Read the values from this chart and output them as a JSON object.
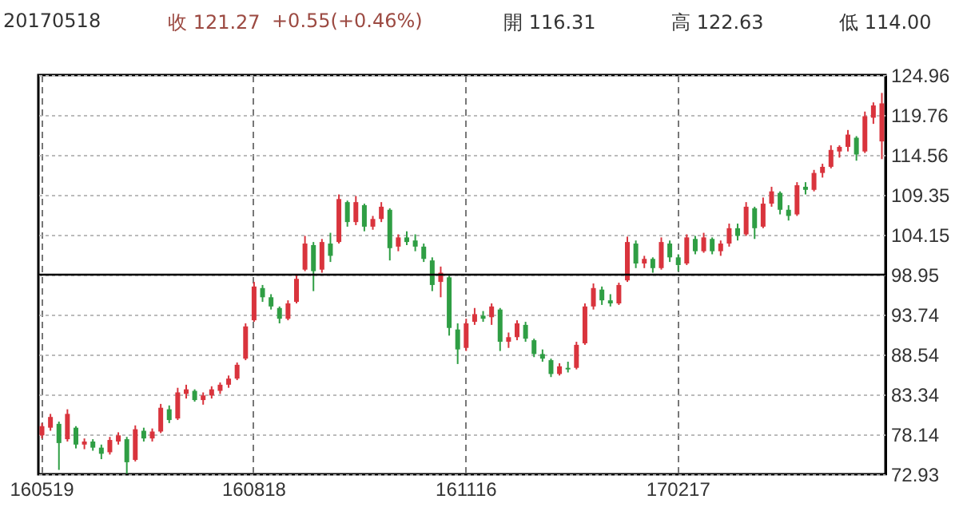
{
  "chart_data": {
    "type": "candlestick",
    "annotations": [
      "20170518",
      "收 121.27",
      "+0.55(+0.46%)",
      "開 116.31",
      "高 122.63",
      "低 114.00"
    ],
    "categories": [
      "160519",
      null,
      null,
      null,
      null,
      null,
      null,
      null,
      null,
      null,
      null,
      null,
      null,
      null,
      null,
      null,
      null,
      null,
      null,
      null,
      null,
      null,
      null,
      null,
      null,
      "160818",
      null,
      null,
      null,
      null,
      null,
      null,
      null,
      null,
      null,
      null,
      null,
      null,
      null,
      null,
      null,
      null,
      null,
      null,
      null,
      null,
      null,
      null,
      null,
      null,
      "161116",
      null,
      null,
      null,
      null,
      null,
      null,
      null,
      null,
      null,
      null,
      null,
      null,
      null,
      null,
      null,
      null,
      null,
      null,
      null,
      null,
      null,
      null,
      null,
      null,
      "170217",
      null,
      null,
      null,
      null,
      null,
      null,
      null,
      null,
      null,
      null,
      null,
      null,
      null,
      null,
      null,
      null,
      null,
      null,
      null,
      null,
      null,
      null,
      null,
      null
    ],
    "ohlc": [
      [
        78.0,
        79.6,
        77.6,
        79.2
      ],
      [
        79.0,
        80.8,
        78.6,
        80.4
      ],
      [
        79.5,
        79.8,
        73.5,
        77.0
      ],
      [
        77.5,
        81.4,
        77.2,
        80.8
      ],
      [
        79.0,
        79.2,
        76.3,
        76.8
      ],
      [
        76.8,
        77.6,
        76.2,
        77.2
      ],
      [
        77.2,
        77.5,
        76.0,
        76.4
      ],
      [
        76.4,
        76.8,
        74.9,
        75.6
      ],
      [
        75.8,
        77.8,
        75.5,
        77.4
      ],
      [
        77.2,
        78.4,
        76.8,
        78.0
      ],
      [
        77.5,
        77.8,
        73.0,
        74.5
      ],
      [
        74.8,
        79.3,
        74.6,
        78.8
      ],
      [
        78.6,
        79.0,
        77.2,
        77.6
      ],
      [
        77.6,
        78.9,
        77.2,
        78.5
      ],
      [
        78.5,
        82.1,
        78.3,
        81.6
      ],
      [
        81.4,
        81.9,
        79.6,
        80.0
      ],
      [
        80.2,
        84.2,
        80.0,
        83.6
      ],
      [
        83.4,
        84.6,
        82.8,
        84.0
      ],
      [
        83.8,
        84.0,
        82.4,
        82.6
      ],
      [
        82.6,
        83.6,
        82.0,
        83.2
      ],
      [
        83.2,
        84.4,
        82.8,
        84.0
      ],
      [
        83.8,
        84.9,
        83.4,
        84.6
      ],
      [
        84.6,
        85.8,
        84.2,
        85.4
      ],
      [
        85.4,
        87.5,
        85.2,
        87.2
      ],
      [
        88.0,
        92.6,
        87.8,
        92.2
      ],
      [
        93.0,
        98.0,
        92.8,
        97.4
      ],
      [
        97.2,
        97.6,
        95.4,
        96.0
      ],
      [
        96.0,
        96.4,
        94.4,
        94.8
      ],
      [
        94.6,
        94.8,
        92.6,
        93.2
      ],
      [
        93.2,
        95.6,
        93.0,
        95.2
      ],
      [
        95.4,
        98.9,
        95.2,
        98.4
      ],
      [
        99.6,
        104.0,
        99.4,
        103.0
      ],
      [
        102.8,
        103.2,
        96.8,
        99.4
      ],
      [
        99.6,
        103.6,
        99.2,
        103.2
      ],
      [
        103.0,
        104.4,
        100.6,
        101.4
      ],
      [
        103.2,
        109.4,
        103.0,
        108.8
      ],
      [
        108.4,
        108.6,
        105.2,
        105.8
      ],
      [
        105.8,
        109.2,
        105.4,
        108.4
      ],
      [
        108.0,
        108.2,
        104.6,
        105.2
      ],
      [
        105.2,
        106.6,
        104.8,
        106.2
      ],
      [
        106.2,
        108.4,
        105.8,
        107.8
      ],
      [
        107.4,
        107.6,
        100.8,
        102.4
      ],
      [
        102.6,
        104.2,
        102.0,
        103.8
      ],
      [
        103.8,
        104.6,
        102.8,
        103.2
      ],
      [
        103.4,
        104.2,
        102.0,
        102.6
      ],
      [
        102.6,
        103.0,
        100.6,
        101.0
      ],
      [
        100.8,
        101.2,
        96.8,
        97.6
      ],
      [
        98.0,
        100.0,
        96.0,
        99.2
      ],
      [
        98.6,
        98.8,
        91.0,
        92.0
      ],
      [
        91.8,
        92.6,
        87.3,
        89.2
      ],
      [
        89.4,
        93.2,
        89.0,
        92.6
      ],
      [
        92.8,
        94.6,
        92.4,
        93.8
      ],
      [
        93.6,
        94.2,
        92.8,
        93.2
      ],
      [
        93.4,
        95.2,
        92.4,
        94.8
      ],
      [
        94.4,
        94.6,
        89.0,
        90.2
      ],
      [
        90.2,
        91.4,
        89.4,
        90.8
      ],
      [
        90.8,
        93.0,
        90.4,
        92.6
      ],
      [
        92.4,
        92.8,
        90.2,
        90.6
      ],
      [
        90.4,
        90.6,
        88.2,
        88.6
      ],
      [
        88.6,
        89.2,
        87.6,
        88.0
      ],
      [
        87.8,
        88.0,
        85.6,
        86.0
      ],
      [
        86.0,
        87.4,
        85.8,
        87.0
      ],
      [
        86.8,
        87.6,
        86.2,
        86.6
      ],
      [
        86.8,
        90.2,
        86.6,
        89.8
      ],
      [
        90.0,
        95.2,
        89.8,
        94.8
      ],
      [
        94.8,
        97.8,
        94.4,
        97.2
      ],
      [
        97.0,
        97.4,
        95.0,
        95.6
      ],
      [
        95.6,
        96.4,
        94.8,
        95.2
      ],
      [
        95.2,
        97.9,
        95.0,
        97.6
      ],
      [
        98.2,
        103.9,
        98.0,
        103.2
      ],
      [
        103.0,
        103.4,
        99.8,
        100.4
      ],
      [
        100.4,
        101.4,
        99.8,
        101.0
      ],
      [
        101.0,
        101.2,
        99.2,
        99.8
      ],
      [
        99.8,
        103.8,
        99.6,
        103.2
      ],
      [
        103.0,
        103.4,
        100.6,
        101.2
      ],
      [
        101.2,
        101.6,
        99.4,
        100.2
      ],
      [
        100.4,
        104.2,
        100.2,
        103.8
      ],
      [
        103.6,
        104.0,
        101.6,
        102.0
      ],
      [
        102.0,
        104.4,
        101.8,
        103.8
      ],
      [
        103.6,
        103.8,
        101.6,
        102.0
      ],
      [
        102.0,
        103.4,
        101.4,
        103.0
      ],
      [
        103.0,
        105.6,
        102.6,
        105.0
      ],
      [
        105.0,
        105.6,
        103.4,
        104.0
      ],
      [
        104.2,
        108.4,
        104.0,
        107.8
      ],
      [
        107.6,
        107.8,
        103.6,
        105.0
      ],
      [
        105.2,
        109.0,
        105.0,
        108.2
      ],
      [
        108.2,
        110.4,
        107.8,
        109.8
      ],
      [
        109.6,
        109.8,
        106.8,
        107.4
      ],
      [
        107.4,
        108.0,
        106.0,
        106.6
      ],
      [
        106.8,
        111.0,
        106.6,
        110.6
      ],
      [
        110.4,
        111.0,
        109.4,
        110.0
      ],
      [
        110.0,
        112.6,
        109.8,
        112.2
      ],
      [
        112.2,
        113.4,
        111.6,
        113.0
      ],
      [
        113.0,
        115.8,
        112.8,
        115.2
      ],
      [
        115.0,
        115.8,
        114.2,
        115.6
      ],
      [
        115.6,
        117.8,
        115.0,
        117.2
      ],
      [
        116.8,
        117.0,
        113.8,
        114.6
      ],
      [
        115.0,
        120.2,
        114.8,
        119.6
      ],
      [
        119.4,
        121.4,
        118.6,
        121.0
      ],
      [
        116.31,
        122.63,
        114.0,
        121.27
      ]
    ],
    "colors": [
      "#d9343d",
      "#d9343d",
      "#2f9e44",
      "#d9343d",
      "#2f9e44",
      "#d9343d",
      "#2f9e44",
      "#2f9e44",
      "#d9343d",
      "#d9343d",
      "#2f9e44",
      "#d9343d",
      "#2f9e44",
      "#d9343d",
      "#d9343d",
      "#2f9e44",
      "#d9343d",
      "#d9343d",
      "#2f9e44",
      "#d9343d",
      "#d9343d",
      "#d9343d",
      "#d9343d",
      "#d9343d",
      "#d9343d",
      "#d9343d",
      "#2f9e44",
      "#2f9e44",
      "#2f9e44",
      "#d9343d",
      "#d9343d",
      "#d9343d",
      "#2f9e44",
      "#d9343d",
      "#2f9e44",
      "#d9343d",
      "#2f9e44",
      "#d9343d",
      "#2f9e44",
      "#d9343d",
      "#d9343d",
      "#2f9e44",
      "#d9343d",
      "#2f9e44",
      "#2f9e44",
      "#2f9e44",
      "#2f9e44",
      "#d9343d",
      "#2f9e44",
      "#2f9e44",
      "#d9343d",
      "#d9343d",
      "#2f9e44",
      "#d9343d",
      "#2f9e44",
      "#d9343d",
      "#d9343d",
      "#2f9e44",
      "#2f9e44",
      "#2f9e44",
      "#2f9e44",
      "#d9343d",
      "#2f9e44",
      "#d9343d",
      "#d9343d",
      "#d9343d",
      "#2f9e44",
      "#2f9e44",
      "#d9343d",
      "#d9343d",
      "#2f9e44",
      "#d9343d",
      "#2f9e44",
      "#d9343d",
      "#2f9e44",
      "#2f9e44",
      "#d9343d",
      "#2f9e44",
      "#d9343d",
      "#2f9e44",
      "#d9343d",
      "#d9343d",
      "#2f9e44",
      "#d9343d",
      "#2f9e44",
      "#d9343d",
      "#d9343d",
      "#2f9e44",
      "#2f9e44",
      "#d9343d",
      "#2f9e44",
      "#d9343d",
      "#d9343d",
      "#d9343d",
      "#d9343d",
      "#d9343d",
      "#2f9e44",
      "#d9343d",
      "#d9343d",
      "#d9343d"
    ],
    "ylim": [
      72.93,
      124.96
    ],
    "yticks": [
      72.93,
      78.14,
      83.34,
      88.54,
      93.74,
      98.95,
      104.15,
      109.35,
      114.56,
      119.76,
      124.96
    ],
    "grid": true,
    "ref_lines": [
      {
        "axis": "y",
        "value": 98.95,
        "color": "#000000",
        "line_style": "solid"
      }
    ]
  }
}
